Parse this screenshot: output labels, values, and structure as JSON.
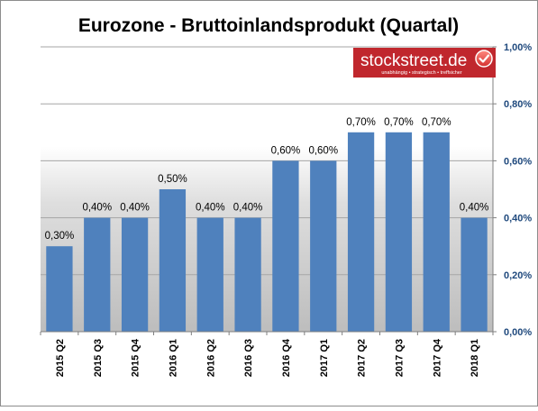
{
  "chart_data": {
    "type": "bar",
    "title": "Eurozone - Bruttoinlandsprodukt (Quartal)",
    "categories": [
      "2015 Q2",
      "2015 Q3",
      "2015 Q4",
      "2016 Q1",
      "2016 Q2",
      "2016 Q3",
      "2016 Q4",
      "2017 Q1",
      "2017 Q2",
      "2017 Q3",
      "2017 Q4",
      "2018 Q1"
    ],
    "values": [
      0.3,
      0.4,
      0.4,
      0.5,
      0.4,
      0.4,
      0.6,
      0.6,
      0.7,
      0.7,
      0.7,
      0.4
    ],
    "data_labels": [
      "0,30%",
      "0,40%",
      "0,40%",
      "0,50%",
      "0,40%",
      "0,40%",
      "0,60%",
      "0,60%",
      "0,70%",
      "0,70%",
      "0,70%",
      "0,40%"
    ],
    "ylim": [
      0,
      1.0
    ],
    "y_ticks": [
      0.0,
      0.2,
      0.4,
      0.6,
      0.8,
      1.0
    ],
    "y_tick_labels": [
      "0,00%",
      "0,20%",
      "0,40%",
      "0,60%",
      "0,80%",
      "1,00%"
    ],
    "y_axis_side": "right",
    "grid": true,
    "bar_color": "#4f81bd",
    "tick_label_color": "#1f497d"
  },
  "logo": {
    "name": "stockstreet.de",
    "tagline": "unabhängig • strategisch • treffsicher",
    "bg_color": "#c0272d",
    "icon": "checkmark-badge-icon"
  }
}
